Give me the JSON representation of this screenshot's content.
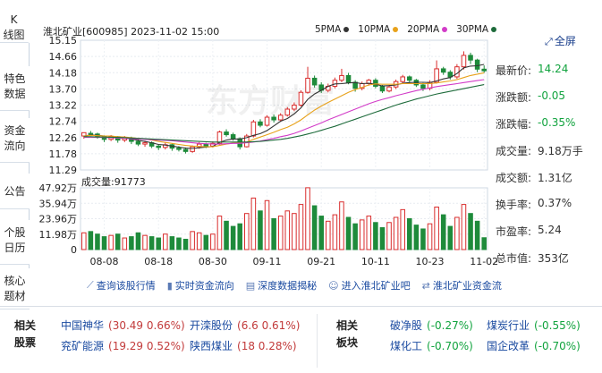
{
  "left_tabs": [
    {
      "label_lines": [
        "K",
        "线图"
      ],
      "active": true
    },
    {
      "label_lines": [
        "特色",
        "数据"
      ],
      "active": false
    },
    {
      "label_lines": [
        "资金",
        "流向"
      ],
      "active": false
    },
    {
      "label_lines": [
        "公告"
      ],
      "active": false
    },
    {
      "label_lines": [
        "个股",
        "日历"
      ],
      "active": false
    },
    {
      "label_lines": [
        "核心",
        "题材"
      ],
      "active": false
    }
  ],
  "header": {
    "stock": "淮北矿业[600985]",
    "datetime": "2023-11-02 15:00"
  },
  "legend": [
    {
      "label": "5PMA",
      "color": "#333333"
    },
    {
      "label": "10PMA",
      "color": "#e8a21b"
    },
    {
      "label": "20PMA",
      "color": "#d23cc8"
    },
    {
      "label": "30PMA",
      "color": "#1e6b3b"
    }
  ],
  "fullscreen_label": "全屏",
  "volume_label": "成交量:91773",
  "watermark": "东方财富",
  "quote": [
    {
      "label": "最新价:",
      "value": "14.24",
      "tone": "green"
    },
    {
      "label": "涨跌额:",
      "value": "-0.05",
      "tone": "green"
    },
    {
      "label": "涨跌幅:",
      "value": "-0.35%",
      "tone": "green"
    },
    {
      "label": "成交量:",
      "value": "9.18万手",
      "tone": "dark"
    },
    {
      "label": "成交额:",
      "value": "1.31亿",
      "tone": "dark"
    },
    {
      "label": "换手率:",
      "value": "0.37%",
      "tone": "dark"
    },
    {
      "label": "市盈率:",
      "value": "5.24",
      "tone": "dark"
    },
    {
      "label": "总市值:",
      "value": "353亿",
      "tone": "dark"
    }
  ],
  "tools": [
    {
      "label": "查询该股行情",
      "icon": "line-chart-icon"
    },
    {
      "label": "实时资金流向",
      "icon": "bar-chart-icon"
    },
    {
      "label": "深度数据揭秘",
      "icon": "data-icon"
    },
    {
      "label": "进入淮北矿业吧",
      "icon": "people-icon"
    },
    {
      "label": "淮北矿业资金流",
      "icon": "flow-icon"
    }
  ],
  "related": {
    "stocks_label_lines": [
      "相关",
      "股票"
    ],
    "sectors_label_lines": [
      "相关",
      "板块"
    ],
    "stocks": [
      {
        "name": "中国神华",
        "value": "(30.49 0.66%)",
        "tone": "red"
      },
      {
        "name": "开滦股份",
        "value": "(6.6 0.61%)",
        "tone": "red"
      },
      {
        "name": "兖矿能源",
        "value": "(19.29 0.52%)",
        "tone": "red"
      },
      {
        "name": "陕西煤业",
        "value": "(18 0.28%)",
        "tone": "red"
      }
    ],
    "sectors": [
      {
        "name": "破净股",
        "value": "(-0.27%)",
        "tone": "green"
      },
      {
        "name": "煤炭行业",
        "value": "(-0.55%)",
        "tone": "green"
      },
      {
        "name": "煤化工",
        "value": "(-0.70%)",
        "tone": "green"
      },
      {
        "name": "国企改革",
        "value": "(-0.70%)",
        "tone": "green"
      }
    ]
  },
  "chart_data": {
    "type": "candlestick",
    "price_axis": {
      "ticks": [
        "15.15",
        "14.66",
        "14.18",
        "13.70",
        "13.22",
        "12.74",
        "12.26",
        "11.78",
        "11.29"
      ],
      "min": 11.29,
      "max": 15.15
    },
    "volume_axis": {
      "ticks": [
        "47.92万",
        "35.94万",
        "23.96万",
        "11.98万",
        "0"
      ],
      "max": 47.92,
      "unit": "万"
    },
    "x_ticks": [
      "08-08",
      "08-18",
      "08-30",
      "09-11",
      "09-21",
      "10-11",
      "10-23",
      "11-02"
    ],
    "x_tick_index": [
      3,
      11,
      19,
      27,
      35,
      43,
      51,
      59
    ],
    "up_color": "#d92d2d",
    "down_color": "#1e8b3b",
    "candles": [
      [
        12.3,
        12.4,
        12.38,
        12.22
      ],
      [
        12.38,
        12.36,
        12.45,
        12.3
      ],
      [
        12.36,
        12.28,
        12.4,
        12.22
      ],
      [
        12.28,
        12.2,
        12.32,
        12.12
      ],
      [
        12.2,
        12.28,
        12.33,
        12.15
      ],
      [
        12.28,
        12.18,
        12.3,
        12.1
      ],
      [
        12.18,
        12.24,
        12.3,
        12.12
      ],
      [
        12.24,
        12.14,
        12.28,
        12.06
      ],
      [
        12.14,
        12.06,
        12.2,
        12.0
      ],
      [
        12.06,
        12.1,
        12.16,
        11.98
      ],
      [
        12.1,
        12.0,
        12.14,
        11.94
      ],
      [
        12.0,
        11.96,
        12.05,
        11.88
      ],
      [
        11.96,
        12.04,
        12.1,
        11.9
      ],
      [
        12.04,
        11.94,
        12.08,
        11.86
      ],
      [
        11.94,
        11.9,
        12.0,
        11.84
      ],
      [
        11.9,
        11.84,
        11.96,
        11.78
      ],
      [
        11.84,
        11.98,
        12.02,
        11.8
      ],
      [
        11.98,
        12.06,
        12.12,
        11.92
      ],
      [
        12.06,
        12.0,
        12.1,
        11.94
      ],
      [
        12.0,
        12.08,
        12.14,
        11.96
      ],
      [
        12.08,
        12.42,
        12.46,
        12.04
      ],
      [
        12.42,
        12.34,
        12.5,
        12.28
      ],
      [
        12.34,
        12.22,
        12.4,
        12.16
      ],
      [
        12.22,
        11.98,
        12.26,
        11.9
      ],
      [
        11.98,
        12.3,
        12.36,
        11.96
      ],
      [
        12.3,
        12.72,
        12.78,
        12.26
      ],
      [
        12.72,
        12.62,
        12.8,
        12.56
      ],
      [
        12.62,
        12.86,
        12.92,
        12.58
      ],
      [
        12.86,
        12.78,
        12.94,
        12.7
      ],
      [
        12.78,
        12.92,
        12.98,
        12.72
      ],
      [
        12.92,
        13.1,
        13.16,
        12.88
      ],
      [
        13.1,
        13.22,
        13.3,
        13.04
      ],
      [
        13.22,
        13.6,
        13.66,
        13.18
      ],
      [
        13.6,
        14.02,
        14.36,
        13.56
      ],
      [
        14.02,
        13.82,
        14.1,
        13.74
      ],
      [
        13.82,
        13.66,
        13.9,
        13.58
      ],
      [
        13.66,
        13.78,
        13.86,
        13.6
      ],
      [
        13.78,
        13.96,
        14.04,
        13.72
      ],
      [
        13.96,
        14.1,
        14.3,
        13.9
      ],
      [
        14.1,
        13.9,
        14.18,
        13.84
      ],
      [
        13.9,
        13.72,
        13.96,
        13.62
      ],
      [
        13.72,
        13.86,
        13.92,
        13.66
      ],
      [
        13.86,
        13.96,
        14.0,
        13.8
      ],
      [
        13.96,
        13.78,
        14.02,
        13.72
      ],
      [
        13.78,
        13.64,
        13.82,
        13.58
      ],
      [
        13.64,
        13.76,
        13.82,
        13.6
      ],
      [
        13.76,
        13.92,
        13.98,
        13.7
      ],
      [
        13.92,
        14.06,
        14.12,
        13.86
      ],
      [
        14.06,
        13.96,
        14.1,
        13.9
      ],
      [
        13.96,
        13.82,
        14.0,
        13.76
      ],
      [
        13.82,
        13.72,
        13.88,
        13.64
      ],
      [
        13.72,
        13.9,
        13.96,
        13.66
      ],
      [
        13.9,
        14.3,
        14.55,
        13.86
      ],
      [
        14.3,
        14.2,
        14.36,
        14.12
      ],
      [
        14.2,
        14.06,
        14.26,
        13.98
      ],
      [
        14.06,
        14.36,
        14.44,
        14.0
      ],
      [
        14.36,
        14.7,
        14.82,
        14.28
      ],
      [
        14.7,
        14.56,
        14.78,
        14.44
      ],
      [
        14.56,
        14.29,
        14.6,
        14.2
      ],
      [
        14.29,
        14.24,
        14.4,
        14.18
      ]
    ],
    "volumes": [
      13,
      14,
      12,
      10,
      11,
      12,
      9,
      10,
      13,
      11,
      10,
      9,
      12,
      10,
      9,
      8,
      14,
      13,
      11,
      12,
      26,
      22,
      18,
      20,
      28,
      40,
      30,
      38,
      24,
      26,
      30,
      28,
      35,
      48,
      34,
      26,
      22,
      27,
      37,
      25,
      20,
      23,
      26,
      21,
      17,
      21,
      25,
      31,
      24,
      19,
      16,
      20,
      33,
      27,
      18,
      25,
      35,
      28,
      22,
      9.2
    ],
    "ma": [
      {
        "label": "5PMA",
        "color": "#333333",
        "values": [
          12.3,
          12.33,
          12.32,
          12.3,
          12.3,
          12.26,
          12.24,
          12.21,
          12.17,
          12.14,
          12.1,
          12.05,
          12.03,
          12.0,
          11.97,
          11.94,
          11.93,
          11.95,
          11.97,
          11.99,
          12.11,
          12.18,
          12.21,
          12.21,
          12.25,
          12.32,
          12.37,
          12.46,
          12.6,
          12.74,
          12.82,
          12.96,
          13.14,
          13.39,
          13.55,
          13.66,
          13.78,
          13.85,
          13.86,
          13.88,
          13.89,
          13.86,
          13.87,
          13.84,
          13.79,
          13.8,
          13.82,
          13.87,
          13.89,
          13.9,
          13.9,
          13.89,
          13.94,
          14.0,
          14.04,
          14.16,
          14.33,
          14.38,
          14.39,
          14.43
        ]
      },
      {
        "label": "10PMA",
        "color": "#e8a21b",
        "values": [
          12.3,
          12.32,
          12.31,
          12.3,
          12.3,
          12.28,
          12.27,
          12.25,
          12.23,
          12.21,
          12.18,
          12.14,
          12.11,
          12.08,
          12.05,
          12.02,
          12.0,
          11.99,
          11.98,
          11.98,
          12.02,
          12.06,
          12.09,
          12.1,
          12.12,
          12.2,
          12.27,
          12.34,
          12.41,
          12.49,
          12.56,
          12.66,
          12.78,
          12.93,
          13.07,
          13.19,
          13.3,
          13.4,
          13.5,
          13.6,
          13.68,
          13.75,
          13.82,
          13.85,
          13.84,
          13.84,
          13.84,
          13.86,
          13.86,
          13.86,
          13.86,
          13.86,
          13.88,
          13.91,
          13.94,
          13.98,
          14.04,
          14.1,
          14.14,
          14.18
        ]
      },
      {
        "label": "20PMA",
        "color": "#d23cc8",
        "values": [
          12.26,
          12.26,
          12.26,
          12.26,
          12.25,
          12.24,
          12.23,
          12.22,
          12.21,
          12.2,
          12.19,
          12.18,
          12.17,
          12.16,
          12.14,
          12.12,
          12.1,
          12.08,
          12.07,
          12.06,
          12.06,
          12.07,
          12.08,
          12.08,
          12.1,
          12.12,
          12.15,
          12.19,
          12.23,
          12.28,
          12.32,
          12.38,
          12.45,
          12.53,
          12.61,
          12.69,
          12.78,
          12.86,
          12.94,
          13.02,
          13.1,
          13.18,
          13.26,
          13.33,
          13.39,
          13.44,
          13.5,
          13.55,
          13.6,
          13.65,
          13.69,
          13.73,
          13.77,
          13.8,
          13.83,
          13.86,
          13.89,
          13.92,
          13.95,
          13.98
        ]
      },
      {
        "label": "30PMA",
        "color": "#1e6b3b",
        "values": [
          12.28,
          12.28,
          12.27,
          12.27,
          12.26,
          12.26,
          12.25,
          12.24,
          12.23,
          12.22,
          12.21,
          12.2,
          12.19,
          12.18,
          12.17,
          12.16,
          12.15,
          12.14,
          12.13,
          12.12,
          12.12,
          12.12,
          12.12,
          12.12,
          12.12,
          12.13,
          12.14,
          12.16,
          12.18,
          12.2,
          12.23,
          12.27,
          12.31,
          12.36,
          12.41,
          12.47,
          12.53,
          12.59,
          12.66,
          12.73,
          12.8,
          12.87,
          12.94,
          13.01,
          13.08,
          13.15,
          13.22,
          13.28,
          13.34,
          13.4,
          13.45,
          13.5,
          13.55,
          13.59,
          13.63,
          13.67,
          13.71,
          13.75,
          13.79,
          13.83
        ]
      }
    ]
  }
}
